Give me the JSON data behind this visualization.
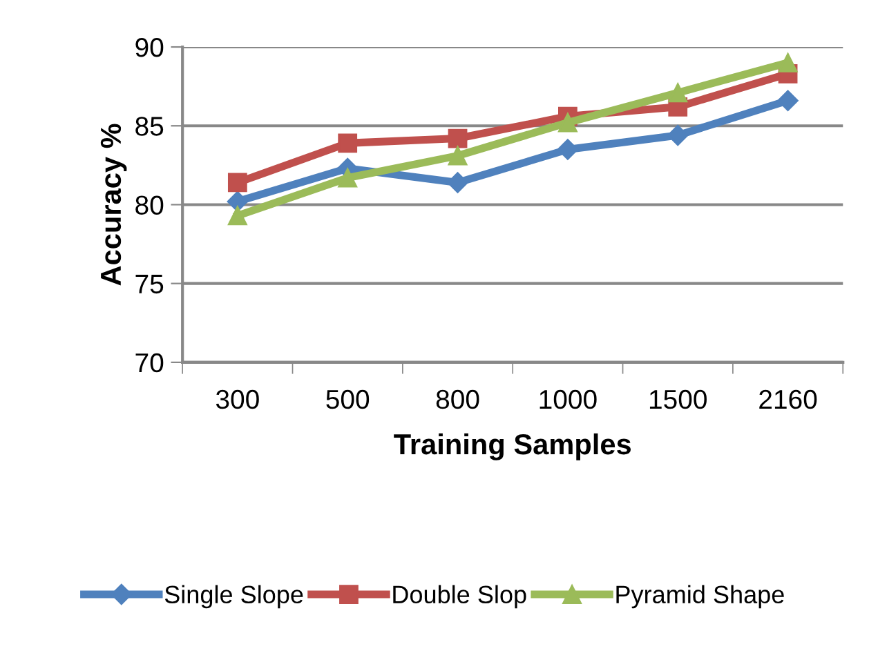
{
  "chart_data": {
    "type": "line",
    "xlabel": "Training Samples",
    "ylabel": "Accuracy %",
    "categories": [
      "300",
      "500",
      "800",
      "1000",
      "1500",
      "2160"
    ],
    "series": [
      {
        "name": "Single Slope",
        "color": "#4f81bd",
        "marker": "diamond",
        "values": [
          80.2,
          82.3,
          81.4,
          83.5,
          84.4,
          86.6
        ]
      },
      {
        "name": "Double Slop",
        "color": "#c0504d",
        "marker": "square",
        "values": [
          81.4,
          83.9,
          84.2,
          85.6,
          86.2,
          88.3
        ]
      },
      {
        "name": "Pyramid Shape",
        "color": "#9bbb59",
        "marker": "triangle",
        "values": [
          79.3,
          81.7,
          83.1,
          85.2,
          87.1,
          89.0
        ]
      }
    ],
    "ylim": [
      70,
      90
    ],
    "yticks": [
      70,
      75,
      80,
      85,
      90
    ],
    "grid": "y",
    "legend": "bottom",
    "line_style": "solid"
  }
}
